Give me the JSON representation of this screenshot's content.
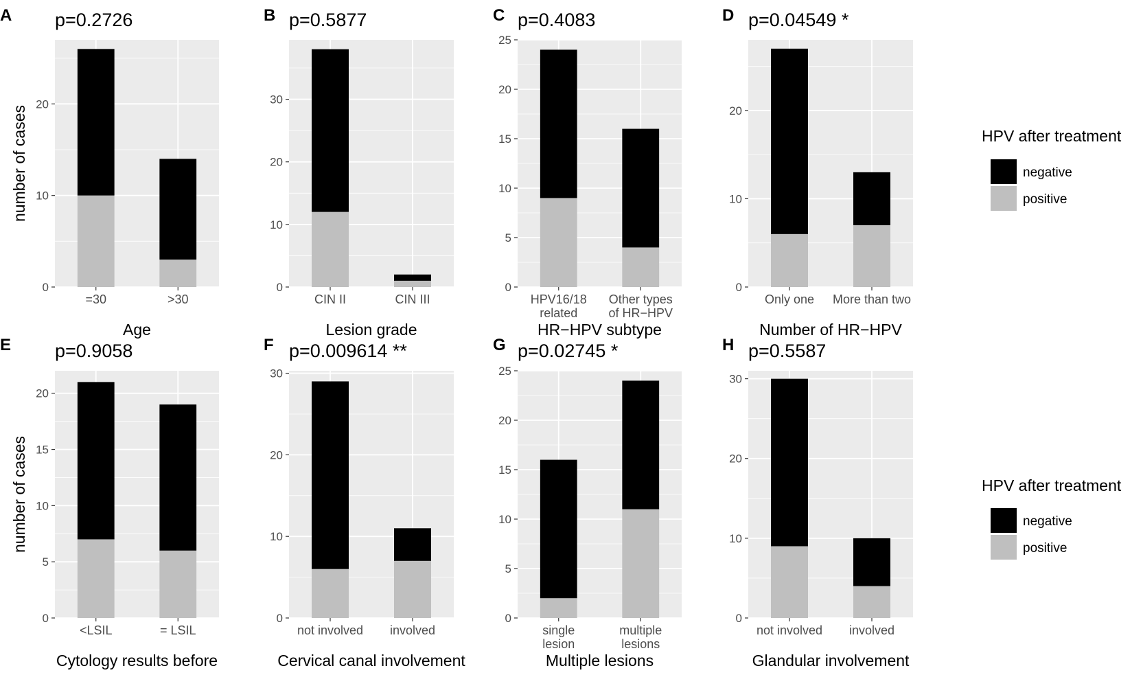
{
  "figure": {
    "y_axis_title": "number of cases",
    "legend": {
      "title": "HPV after treatment",
      "items": [
        {
          "label": "negative",
          "color": "#000000"
        },
        {
          "label": "positive",
          "color": "#bfbfbf"
        }
      ]
    },
    "colors": {
      "panel_background": "#ebebeb",
      "grid": "#ffffff",
      "negative": "#000000",
      "positive": "#bfbfbf"
    }
  },
  "chart_data": [
    {
      "panel": "A",
      "type": "bar",
      "stacked": true,
      "title": "p=0.2726",
      "xlabel": "Age",
      "ylabel": "number of cases",
      "categories": [
        [
          "=30"
        ],
        [
          ">30"
        ]
      ],
      "ylim": [
        0,
        27
      ],
      "yticks": [
        0,
        10,
        20
      ],
      "series": [
        {
          "name": "positive",
          "values": [
            10,
            3
          ]
        },
        {
          "name": "negative",
          "values": [
            16,
            11
          ]
        }
      ]
    },
    {
      "panel": "B",
      "type": "bar",
      "stacked": true,
      "title": "p=0.5877",
      "xlabel": "Lesion grade",
      "ylabel": "",
      "categories": [
        [
          "CIN II"
        ],
        [
          "CIN III"
        ]
      ],
      "ylim": [
        0,
        39.5
      ],
      "yticks": [
        0,
        10,
        20,
        30
      ],
      "series": [
        {
          "name": "positive",
          "values": [
            12,
            1
          ]
        },
        {
          "name": "negative",
          "values": [
            26,
            1
          ]
        }
      ]
    },
    {
      "panel": "C",
      "type": "bar",
      "stacked": true,
      "title": "p=0.4083",
      "xlabel": "HR−HPV subtype",
      "ylabel": "",
      "categories": [
        [
          "HPV16/18",
          "related"
        ],
        [
          "Other types",
          "of HR−HPV"
        ]
      ],
      "ylim": [
        0,
        25
      ],
      "yticks": [
        0,
        5,
        10,
        15,
        20,
        25
      ],
      "series": [
        {
          "name": "positive",
          "values": [
            9,
            4
          ]
        },
        {
          "name": "negative",
          "values": [
            15,
            12
          ]
        }
      ]
    },
    {
      "panel": "D",
      "type": "bar",
      "stacked": true,
      "title": "p=0.04549 *",
      "xlabel": "Number of HR−HPV",
      "ylabel": "",
      "categories": [
        [
          "Only one"
        ],
        [
          "More than two"
        ]
      ],
      "ylim": [
        0,
        28
      ],
      "yticks": [
        0,
        10,
        20
      ],
      "series": [
        {
          "name": "positive",
          "values": [
            6,
            7
          ]
        },
        {
          "name": "negative",
          "values": [
            21,
            6
          ]
        }
      ]
    },
    {
      "panel": "E",
      "type": "bar",
      "stacked": true,
      "title": "p=0.9058",
      "xlabel": "Cytology results before",
      "ylabel": "number of cases",
      "categories": [
        [
          "<LSIL"
        ],
        [
          "= LSIL"
        ]
      ],
      "ylim": [
        0,
        22
      ],
      "yticks": [
        0,
        5,
        10,
        15,
        20
      ],
      "series": [
        {
          "name": "positive",
          "values": [
            7,
            6
          ]
        },
        {
          "name": "negative",
          "values": [
            14,
            13
          ]
        }
      ]
    },
    {
      "panel": "F",
      "type": "bar",
      "stacked": true,
      "title": "p=0.009614 **",
      "xlabel": "Cervical canal involvement",
      "ylabel": "",
      "categories": [
        [
          "not involved"
        ],
        [
          "involved"
        ]
      ],
      "ylim": [
        0,
        30.3
      ],
      "yticks": [
        0,
        10,
        20,
        30
      ],
      "series": [
        {
          "name": "positive",
          "values": [
            6,
            7
          ]
        },
        {
          "name": "negative",
          "values": [
            23,
            4
          ]
        }
      ]
    },
    {
      "panel": "G",
      "type": "bar",
      "stacked": true,
      "title": "p=0.02745 *",
      "xlabel": "Multiple lesions",
      "ylabel": "",
      "categories": [
        [
          "single",
          "lesion"
        ],
        [
          "multiple",
          "lesions"
        ]
      ],
      "ylim": [
        0,
        25
      ],
      "yticks": [
        0,
        5,
        10,
        15,
        20,
        25
      ],
      "series": [
        {
          "name": "positive",
          "values": [
            2,
            11
          ]
        },
        {
          "name": "negative",
          "values": [
            14,
            13
          ]
        }
      ]
    },
    {
      "panel": "H",
      "type": "bar",
      "stacked": true,
      "title": "p=0.5587",
      "xlabel": "Glandular involvement",
      "ylabel": "",
      "categories": [
        [
          "not involved"
        ],
        [
          "involved"
        ]
      ],
      "ylim": [
        0,
        31
      ],
      "yticks": [
        0,
        10,
        20,
        30
      ],
      "series": [
        {
          "name": "positive",
          "values": [
            9,
            4
          ]
        },
        {
          "name": "negative",
          "values": [
            21,
            6
          ]
        }
      ]
    }
  ]
}
